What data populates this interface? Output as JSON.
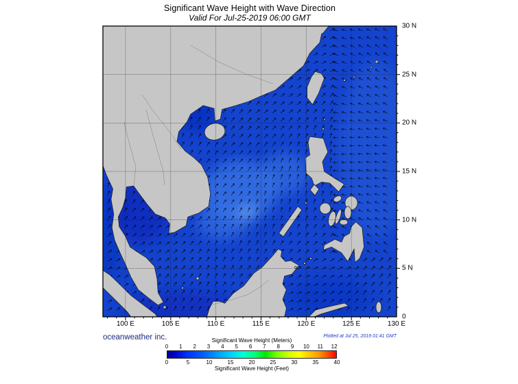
{
  "title": "Significant Wave Height with Wave Direction",
  "subtitle": "Valid For Jul-25-2019 06:00 GMT",
  "credit": "oceanweather inc.",
  "plotted_at": "Plotted at Jul 25, 2019 01:41 GMT",
  "map": {
    "lon_min": 97.5,
    "lon_max": 130,
    "lat_min": 0,
    "lat_max": 30,
    "x_tick_lons": [
      100,
      105,
      110,
      115,
      120,
      125,
      130
    ],
    "x_tick_labels": [
      "100 E",
      "105 E",
      "110 E",
      "115 E",
      "120 E",
      "125 E",
      "130 E"
    ],
    "y_tick_lats": [
      30,
      25,
      20,
      15,
      10,
      5,
      0
    ],
    "y_tick_labels": [
      "30 N",
      "25 N",
      "20 N",
      "15 N",
      "10 N",
      "5 N",
      "0"
    ],
    "colors": {
      "sea": "#1443cd",
      "sea_light": "#3b76e6",
      "sea_bright": "#6fa8f0",
      "sea_dark": "#0a2abc",
      "land": "#c6c6c6",
      "coast": "#1a1a1a",
      "grid": "#1a1a1a",
      "arrow": "#000000",
      "frame": "#000000"
    },
    "arrows": {
      "spacing": 12,
      "length": 7
    }
  },
  "legend": {
    "meters_label": "Significant Wave Height (Meters)",
    "feet_label": "Significant Wave Height (Feet)",
    "meters_ticks": [
      "0",
      "1",
      "2",
      "3",
      "4",
      "5",
      "6",
      "7",
      "8",
      "9",
      "10",
      "11",
      "12"
    ],
    "feet_ticks": [
      "0",
      "5",
      "10",
      "15",
      "20",
      "25",
      "30",
      "35",
      "40"
    ],
    "max_feet": 40,
    "meters_to_feet": 3.28084,
    "gradient_stops": [
      [
        0,
        "#000096"
      ],
      [
        4,
        "#0000c8"
      ],
      [
        12,
        "#0032ff"
      ],
      [
        22,
        "#0064ff"
      ],
      [
        30,
        "#00a0ff"
      ],
      [
        38,
        "#00d2ff"
      ],
      [
        45,
        "#00ffd2"
      ],
      [
        52,
        "#00ff78"
      ],
      [
        58,
        "#00e600"
      ],
      [
        65,
        "#78ff00"
      ],
      [
        72,
        "#d2ff00"
      ],
      [
        78,
        "#ffff00"
      ],
      [
        84,
        "#ffc800"
      ],
      [
        90,
        "#ff9600"
      ],
      [
        95,
        "#ff5000"
      ],
      [
        100,
        "#ff0000"
      ]
    ]
  }
}
